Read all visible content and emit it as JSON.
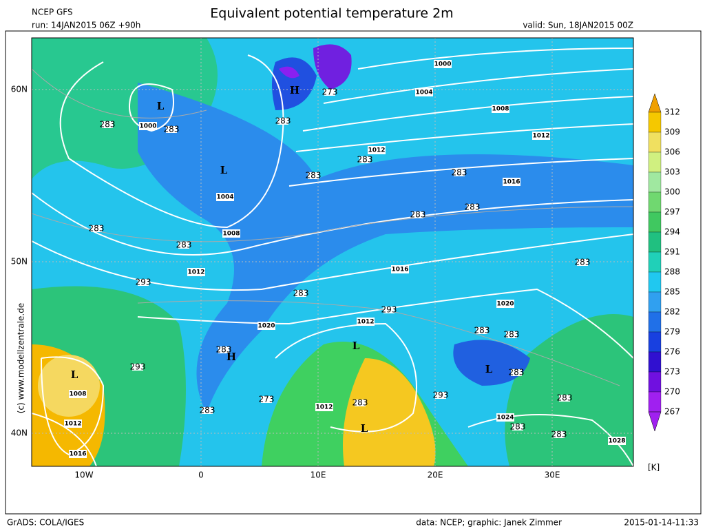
{
  "header": {
    "model": "NCEP GFS",
    "run": "run: 14JAN2015 06Z +90h",
    "title": "Equivalent potential temperature 2m",
    "valid": "valid: Sun, 18JAN2015 00Z"
  },
  "axes": {
    "lat_labels": [
      "60N",
      "50N",
      "40N"
    ],
    "lon_labels": [
      "10W",
      "0",
      "10E",
      "20E",
      "30E"
    ]
  },
  "colorbar": {
    "levels": [
      312,
      309,
      306,
      303,
      300,
      297,
      294,
      291,
      288,
      285,
      282,
      279,
      276,
      273,
      270,
      267
    ],
    "unit": "[K]"
  },
  "isobar_labels": [
    "1000",
    "1004",
    "1008",
    "1012",
    "1012",
    "1016",
    "1000",
    "1004",
    "1008",
    "1012",
    "1016",
    "1020",
    "1020",
    "1012",
    "1012",
    "1008",
    "1012",
    "1016",
    "1024",
    "1028"
  ],
  "centers": [
    "L",
    "H",
    "L",
    "L",
    "H",
    "L",
    "L",
    "L"
  ],
  "isotherm_labels": [
    "283",
    "283",
    "283",
    "273",
    "283",
    "283",
    "283",
    "283",
    "283",
    "283",
    "283",
    "293",
    "283",
    "283",
    "293",
    "283",
    "273",
    "283",
    "293",
    "283",
    "283",
    "283",
    "283",
    "283",
    "283",
    "283",
    "293"
  ],
  "side_text": "(c) www.modellzentrale.de",
  "footer": {
    "left": "GrADS: COLA/IGES",
    "credit": "data: NCEP; graphic: Janek Zimmer",
    "timestamp": "2015-01-14-11:33"
  }
}
